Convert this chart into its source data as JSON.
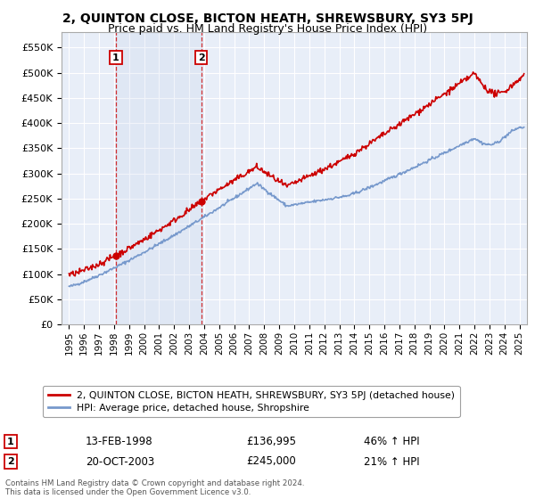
{
  "title": "2, QUINTON CLOSE, BICTON HEATH, SHREWSBURY, SY3 5PJ",
  "subtitle": "Price paid vs. HM Land Registry's House Price Index (HPI)",
  "title_fontsize": 10,
  "subtitle_fontsize": 9,
  "ylabel_ticks": [
    "£0",
    "£50K",
    "£100K",
    "£150K",
    "£200K",
    "£250K",
    "£300K",
    "£350K",
    "£400K",
    "£450K",
    "£500K",
    "£550K"
  ],
  "ytick_values": [
    0,
    50000,
    100000,
    150000,
    200000,
    250000,
    300000,
    350000,
    400000,
    450000,
    500000,
    550000
  ],
  "ylim": [
    0,
    580000
  ],
  "xlim_start": 1994.5,
  "xlim_end": 2025.5,
  "xtick_years": [
    1995,
    1996,
    1997,
    1998,
    1999,
    2000,
    2001,
    2002,
    2003,
    2004,
    2005,
    2006,
    2007,
    2008,
    2009,
    2010,
    2011,
    2012,
    2013,
    2014,
    2015,
    2016,
    2017,
    2018,
    2019,
    2020,
    2021,
    2022,
    2023,
    2024,
    2025
  ],
  "background_color": "#ffffff",
  "plot_bg_color": "#e8eef8",
  "grid_color": "#ffffff",
  "hpi_color": "#7799cc",
  "price_color": "#cc0000",
  "transaction1_x": 1998.12,
  "transaction1_y": 136995,
  "transaction1_label": "1",
  "transaction1_date": "13-FEB-1998",
  "transaction1_price": "£136,995",
  "transaction1_hpi": "46% ↑ HPI",
  "transaction2_x": 2003.8,
  "transaction2_y": 245000,
  "transaction2_label": "2",
  "transaction2_date": "20-OCT-2003",
  "transaction2_price": "£245,000",
  "transaction2_hpi": "21% ↑ HPI",
  "legend_line1": "2, QUINTON CLOSE, BICTON HEATH, SHREWSBURY, SY3 5PJ (detached house)",
  "legend_line2": "HPI: Average price, detached house, Shropshire",
  "footer": "Contains HM Land Registry data © Crown copyright and database right 2024.\nThis data is licensed under the Open Government Licence v3.0."
}
